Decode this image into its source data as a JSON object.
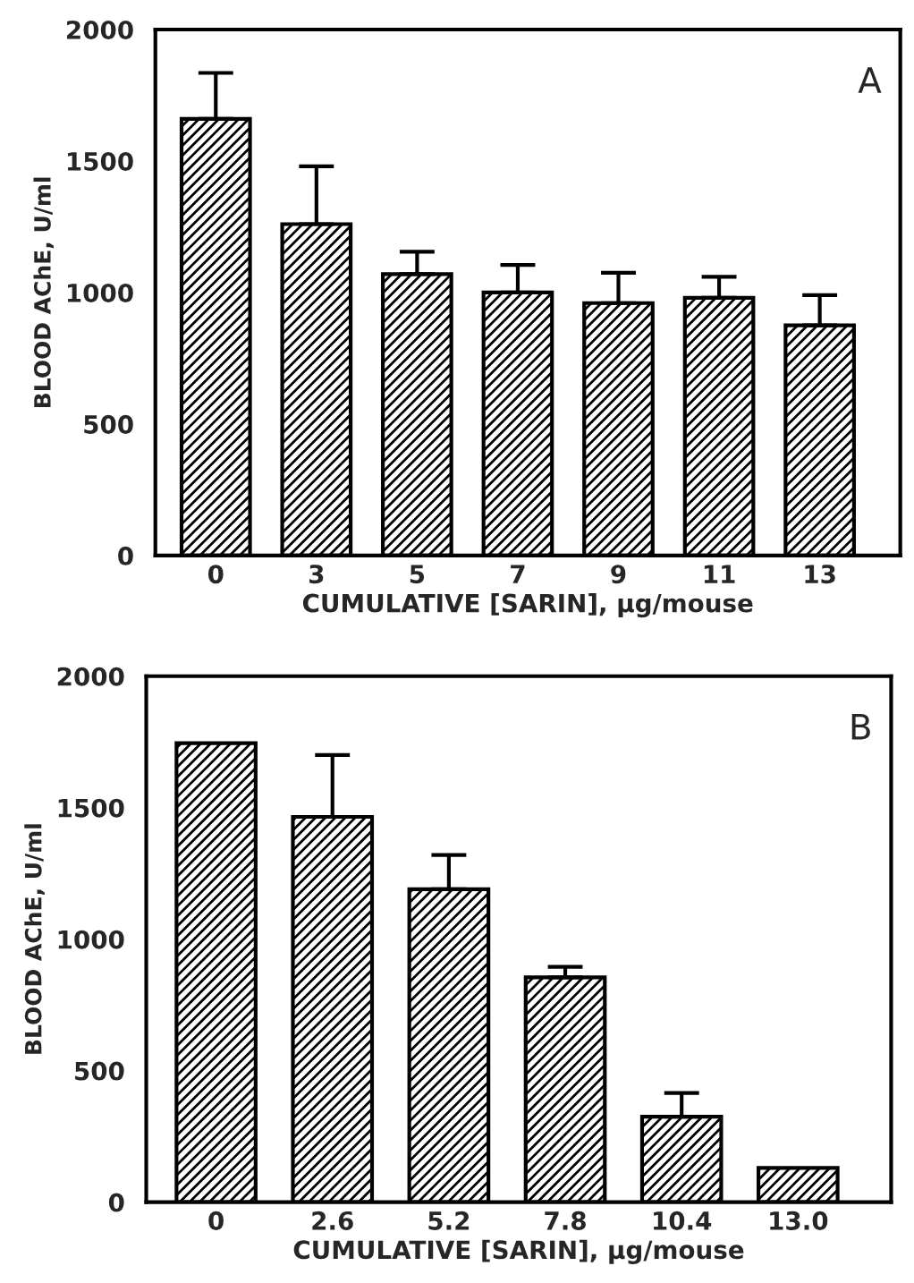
{
  "chart_data": [
    {
      "type": "bar",
      "categories": [
        "0",
        "3",
        "5",
        "7",
        "9",
        "11",
        "13"
      ],
      "values": [
        1660,
        1260,
        1070,
        1000,
        960,
        980,
        875
      ],
      "errors": [
        [
          1660,
          1835
        ],
        [
          1260,
          1480
        ],
        [
          1070,
          1155
        ],
        [
          1000,
          1105
        ],
        [
          960,
          1075
        ],
        [
          980,
          1060
        ],
        [
          875,
          990
        ]
      ],
      "color": "#000000",
      "ylim": [
        0,
        2000
      ],
      "yticks": [
        0,
        500,
        1000,
        1500,
        2000
      ],
      "xlabel": "CUMULATIVE [SARIN], µg/mouse",
      "ylabel": "BLOOD AChE, U/ml",
      "annotations": [
        "A"
      ]
    },
    {
      "type": "bar",
      "categories": [
        "0",
        "2.6",
        "5.2",
        "7.8",
        "10.4",
        "13.0"
      ],
      "values": [
        1745,
        1465,
        1190,
        855,
        325,
        130
      ],
      "errors": [
        null,
        [
          1465,
          1700
        ],
        [
          1190,
          1320
        ],
        [
          855,
          895
        ],
        [
          325,
          415
        ],
        null
      ],
      "color": "#000000",
      "ylim": [
        0,
        2000
      ],
      "yticks": [
        0,
        500,
        1000,
        1500,
        2000
      ],
      "xlabel": "CUMULATIVE [SARIN], µg/mouse",
      "ylabel": "BLOOD AChE, U/ml",
      "annotations": [
        "B"
      ]
    }
  ]
}
